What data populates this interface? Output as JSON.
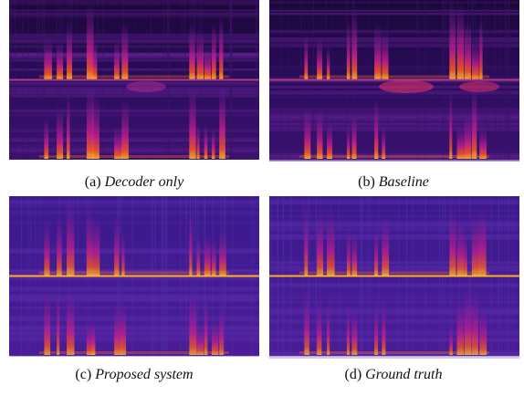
{
  "figures": [
    {
      "label": "(a)",
      "name": "Decoder only"
    },
    {
      "label": "(b)",
      "name": "Baseline"
    },
    {
      "label": "(c)",
      "name": "Proposed system"
    },
    {
      "label": "(d)",
      "name": "Ground truth"
    }
  ]
}
